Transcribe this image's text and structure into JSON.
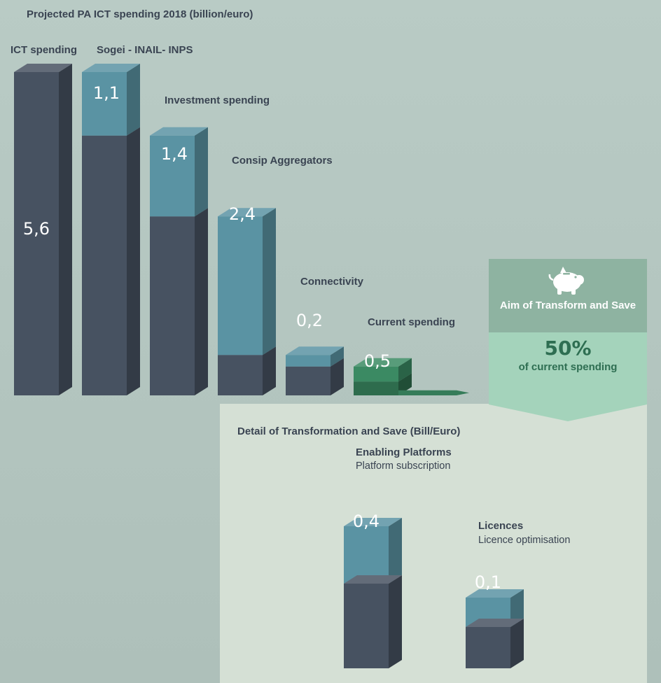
{
  "title": "Projected PA ICT spending 2018 (billion/euro)",
  "colors": {
    "dark_bar": "#475261",
    "blue_bar": "#5a93a3",
    "green_bar": "#3b8a63",
    "aim_header": "#8eb3a1",
    "aim_body": "#a4d3bb",
    "detail_panel": "#d5e0d5"
  },
  "chart_data": [
    {
      "type": "bar",
      "stacked": true,
      "title": "Projected PA ICT spending 2018 (billion/euro)",
      "categories": [
        "ICT spending",
        "Sogei - INAIL- INPS",
        "Investment spending",
        "Consip Aggregators",
        "Connectivity",
        "Current spending"
      ],
      "values": [
        5.6,
        1.1,
        1.4,
        2.4,
        0.2,
        0.5
      ],
      "value_labels": [
        "5,6",
        "1,1",
        "1,4",
        "2,4",
        "0,2",
        "0,5"
      ]
    },
    {
      "type": "bar",
      "stacked": true,
      "title": "Detail of Transformation and Save (Bill/Euro)",
      "categories": [
        "Enabling Platforms",
        "Licences"
      ],
      "subtitles": [
        "Platform subscription",
        "Licence optimisation"
      ],
      "values": [
        0.4,
        0.1
      ],
      "value_labels": [
        "0,4",
        "0,1"
      ]
    }
  ],
  "aim": {
    "icon": "piggy-bank-icon",
    "title": "Aim of Transform and Save",
    "value": "50%",
    "subtitle": "of current spending"
  }
}
